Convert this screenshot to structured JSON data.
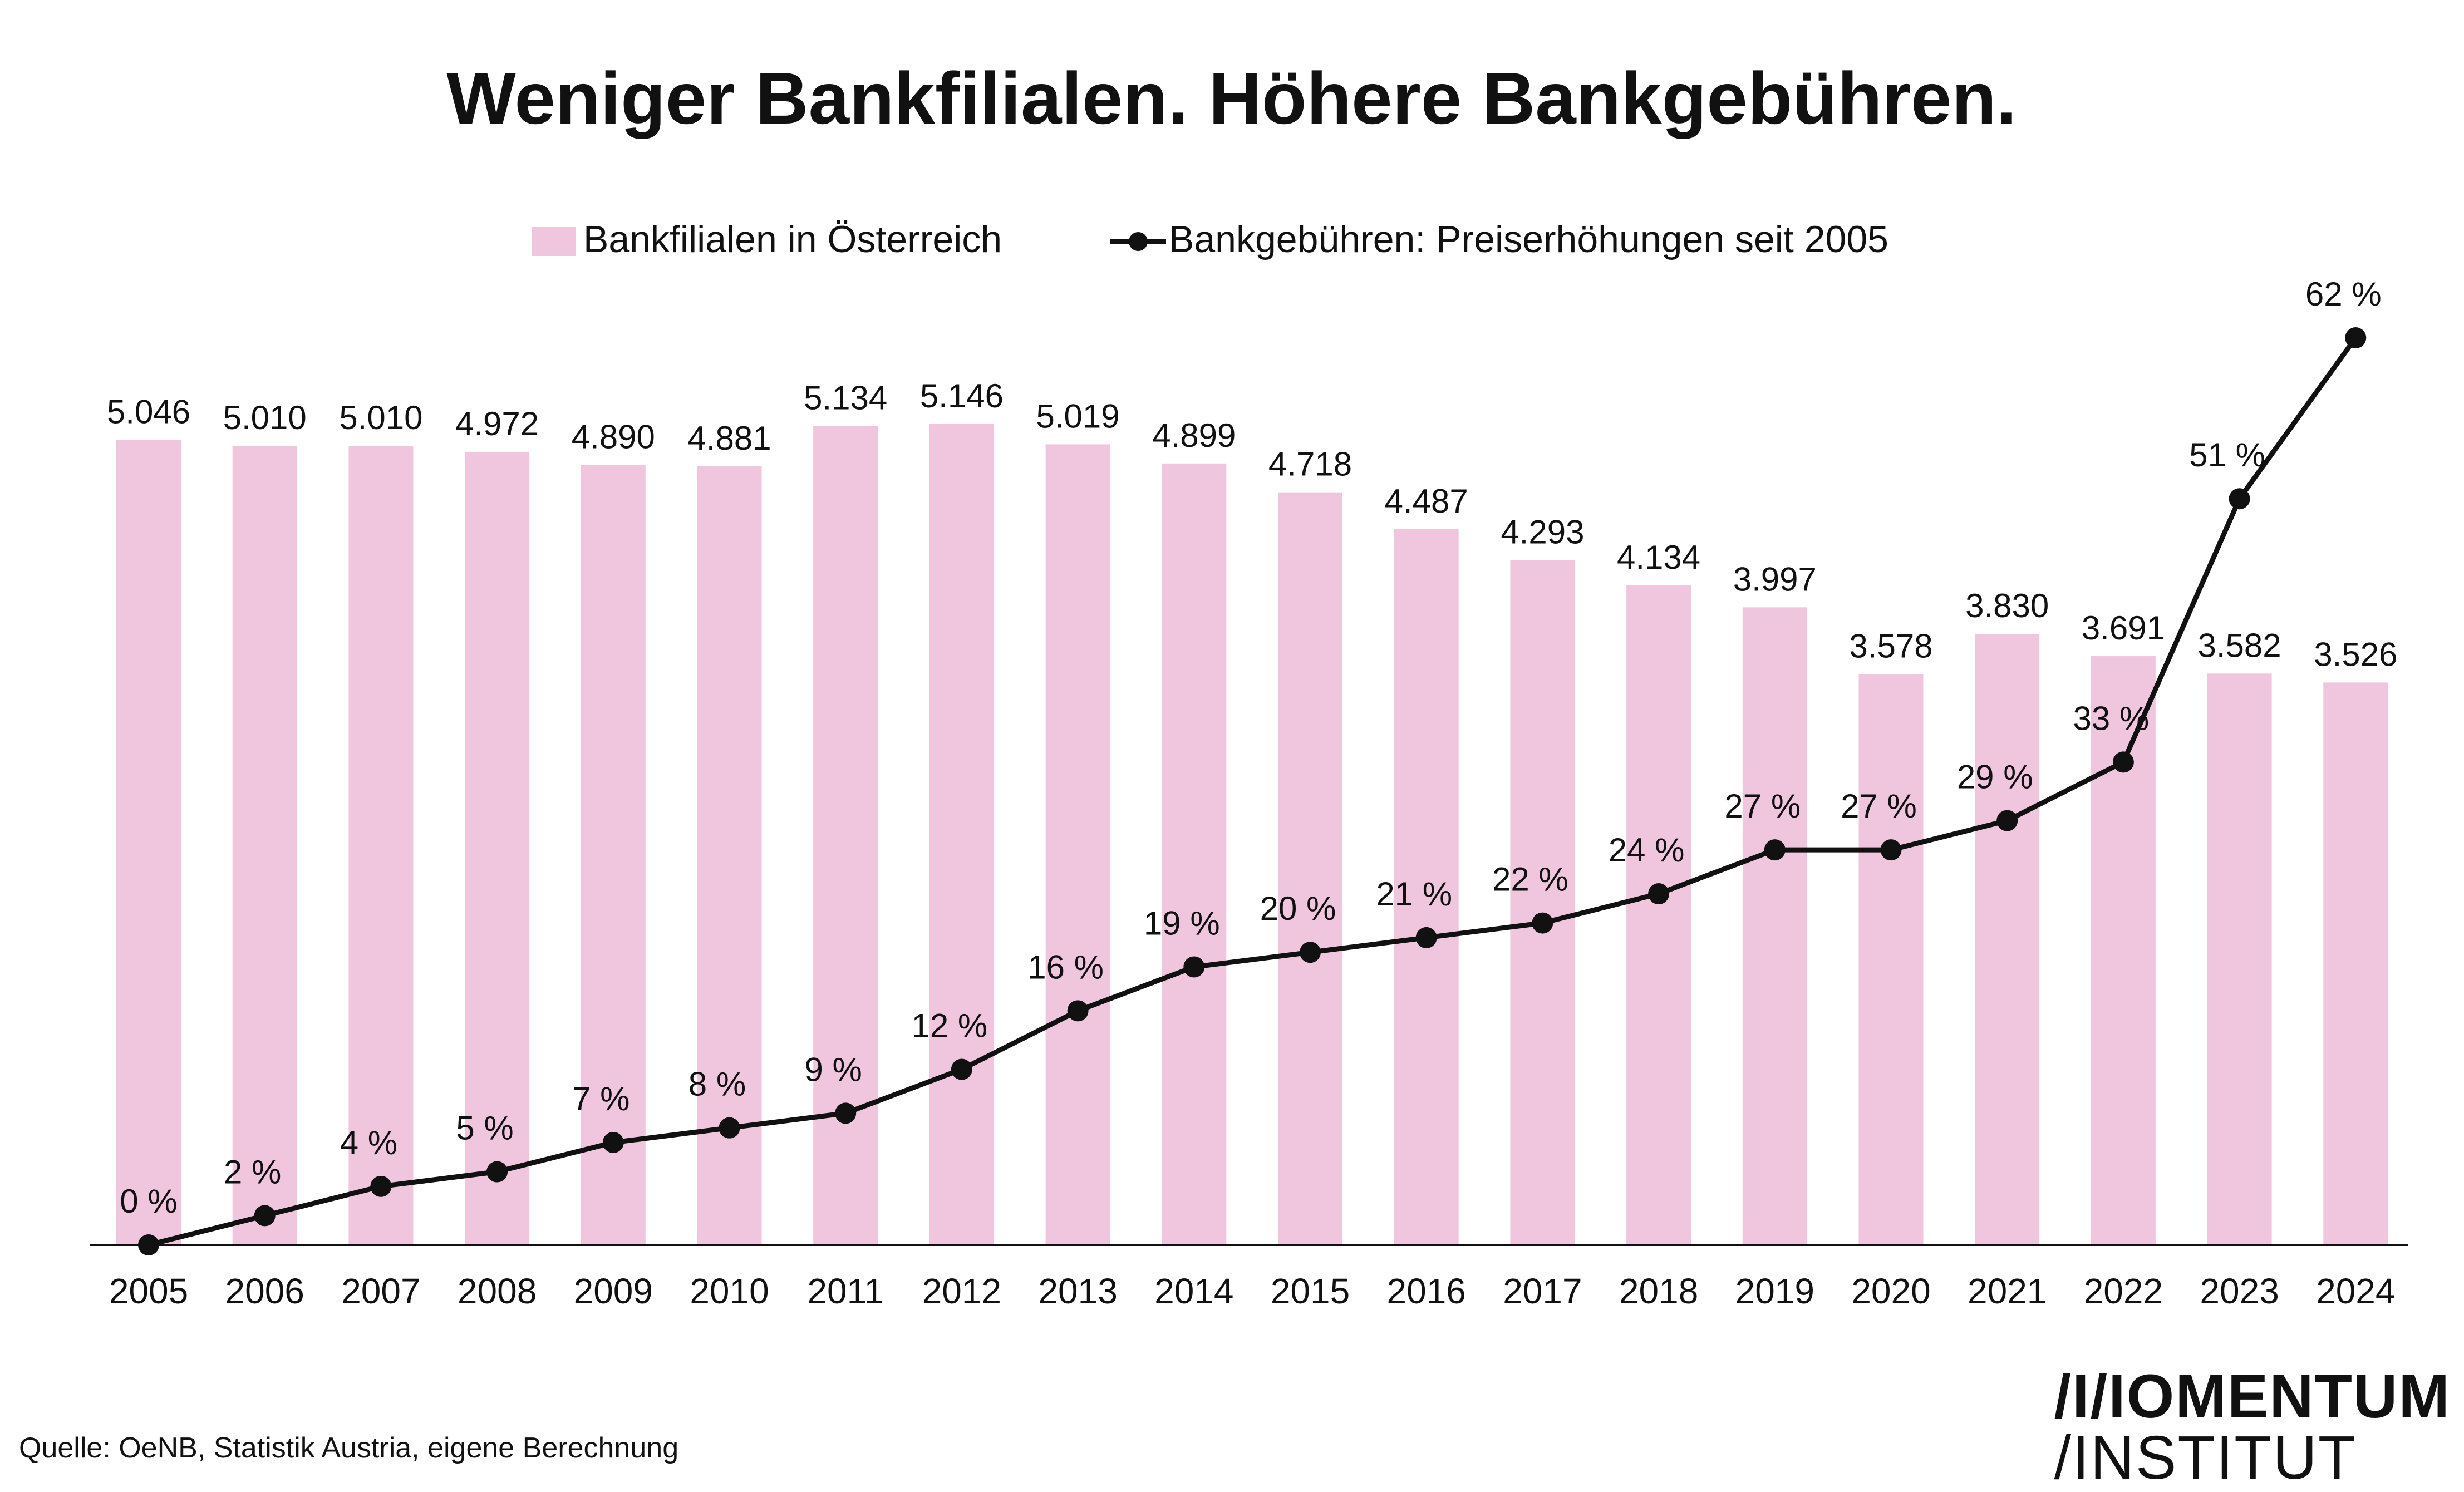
{
  "title": "Weniger Bankfilialen. Höhere Bankgebühren.",
  "source": "Quelle: OeNB, Statistik Austria, eigene Berechnung",
  "logo": {
    "line1": "/I/IOMENTUM",
    "line2": "/INSTITUT"
  },
  "colors": {
    "bar": "#f0c6df",
    "line": "#111111",
    "text": "#111111"
  },
  "chart_data": {
    "type": "bar",
    "title": "Weniger Bankfilialen. Höhere Bankgebühren.",
    "legend_position": "top-center",
    "grid": false,
    "categories": [
      "2005",
      "2006",
      "2007",
      "2008",
      "2009",
      "2010",
      "2011",
      "2012",
      "2013",
      "2014",
      "2015",
      "2016",
      "2017",
      "2018",
      "2019",
      "2020",
      "2021",
      "2022",
      "2023",
      "2024"
    ],
    "series": [
      {
        "name": "Bankfilialen in Österreich",
        "type": "bar",
        "values": [
          5046,
          5010,
          5010,
          4972,
          4890,
          4881,
          5134,
          5146,
          5019,
          4899,
          4718,
          4487,
          4293,
          4134,
          3997,
          3578,
          3830,
          3691,
          3582,
          3526
        ],
        "labels": [
          "5.046",
          "5.010",
          "5.010",
          "4.972",
          "4.890",
          "4.881",
          "5.134",
          "5.146",
          "5.019",
          "4.899",
          "4.718",
          "4.487",
          "4.293",
          "4.134",
          "3.997",
          "3.578",
          "3.830",
          "3.691",
          "3.582",
          "3.526"
        ]
      },
      {
        "name": "Bankgebühren: Preiserhöhungen seit 2005",
        "type": "line",
        "values": [
          0,
          2,
          4,
          5,
          7,
          8,
          9,
          12,
          16,
          19,
          20,
          21,
          22,
          24,
          27,
          27,
          29,
          33,
          51,
          62
        ],
        "labels": [
          "0 %",
          "2 %",
          "4 %",
          "5 %",
          "7 %",
          "8 %",
          "9 %",
          "12 %",
          "16 %",
          "19 %",
          "20 %",
          "21 %",
          "22 %",
          "24 %",
          "27 %",
          "27 %",
          "29 %",
          "33 %",
          "51 %",
          "62 %"
        ]
      }
    ]
  }
}
